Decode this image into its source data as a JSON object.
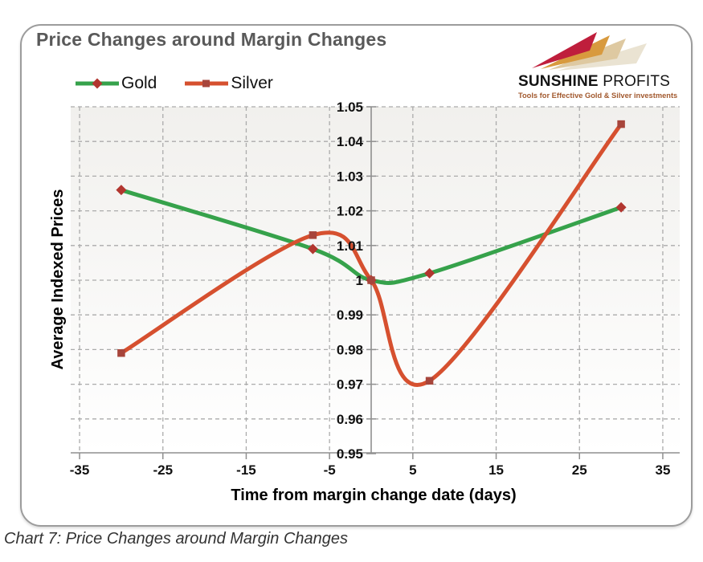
{
  "page": {
    "caption": "Chart 7: Price Changes around Margin Changes"
  },
  "logo": {
    "name_bold": "SUNSHINE",
    "name_light": " PROFITS",
    "tagline": "Tools for Effective Gold & Silver investments",
    "tagline_color": "#a2592e",
    "arrow_colors": [
      "#eae3d2",
      "#dec9a1",
      "#d89a3e",
      "#bf1e3c"
    ]
  },
  "chart_data": {
    "type": "line",
    "smoothing": "spline",
    "title": "Price Changes around Margin Changes",
    "xlabel": "Time from margin change date (days)",
    "ylabel": "Average Indexed Prices",
    "xlim": [
      -35,
      35
    ],
    "ylim": [
      0.95,
      1.05
    ],
    "x_ticks": [
      -35,
      -25,
      -15,
      -5,
      5,
      15,
      25,
      35
    ],
    "y_ticks": [
      "1.05",
      "1.04",
      "1.03",
      "1.02",
      "1.01",
      "1",
      "0.99",
      "0.98",
      "0.97",
      "0.96",
      "0.95"
    ],
    "grid": "dashed",
    "legend_position": "top-left",
    "x": [
      -30,
      -7,
      0,
      7,
      30
    ],
    "series": [
      {
        "name": "Gold",
        "color": "#36a24b",
        "marker": "diamond",
        "marker_color": "#b2362f",
        "values": [
          1.026,
          1.009,
          1.0,
          1.002,
          1.021
        ]
      },
      {
        "name": "Silver",
        "color": "#d6502f",
        "marker": "square",
        "marker_color": "#a7453b",
        "values": [
          0.979,
          1.013,
          1.0,
          0.971,
          1.045
        ]
      }
    ],
    "style": {
      "grid_color": "#ababab",
      "axis_color": "#8f8f8f",
      "plot_bg_top": "#f1f0ed",
      "plot_bg_bottom": "#ffffff",
      "title_color": "#595959"
    }
  }
}
